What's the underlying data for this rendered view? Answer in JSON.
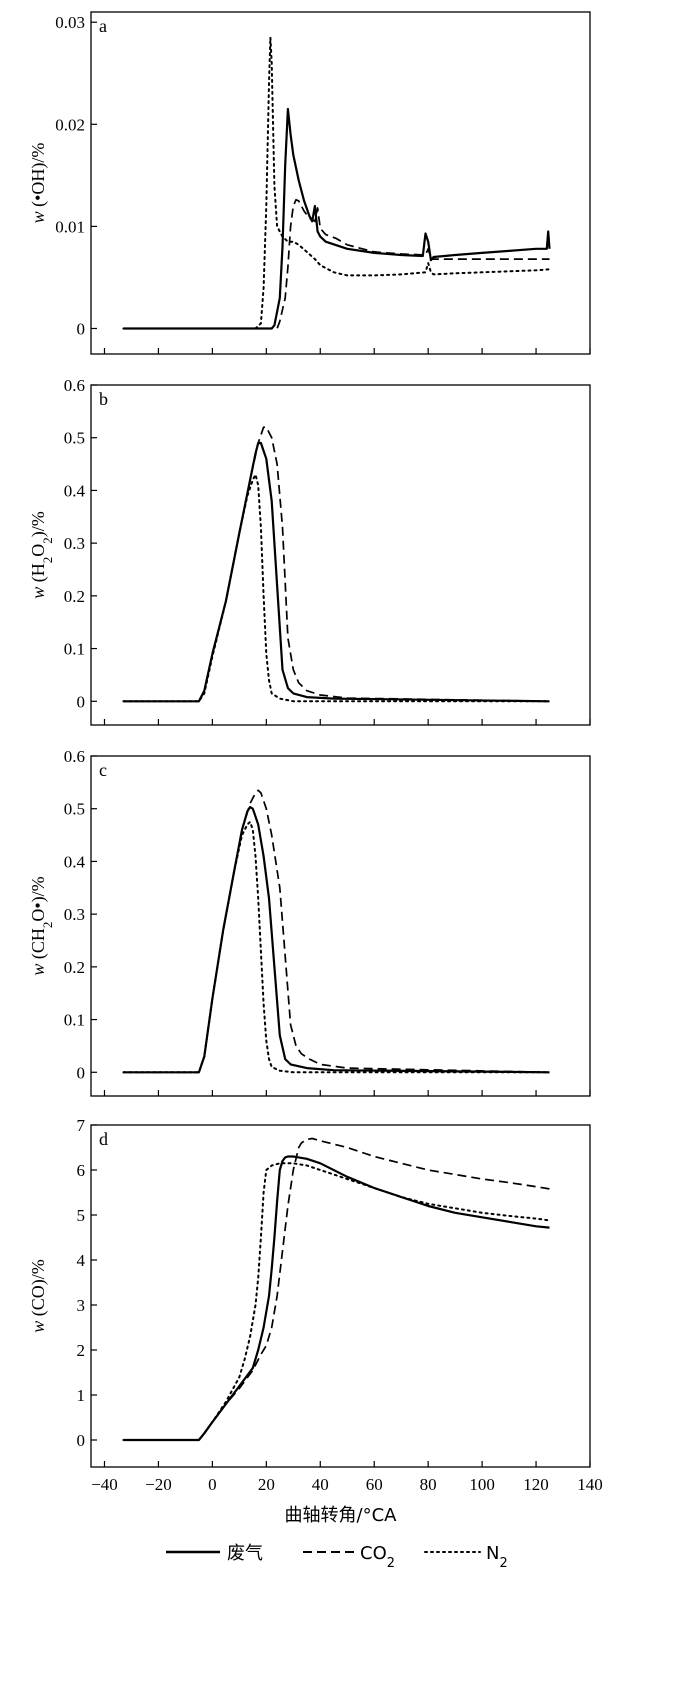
{
  "chart_data": [
    {
      "type": "line",
      "panel_label": "a",
      "ylabel": "w (•OH)/%",
      "xlim": [
        -45,
        140
      ],
      "ylim": [
        -0.0025,
        0.031
      ],
      "yticks": [
        0,
        0.01,
        0.02,
        0.03
      ],
      "ytick_labels": [
        "0",
        "0.01",
        "0.02",
        "0.03"
      ],
      "series": [
        {
          "style": "solid",
          "x": [
            -33,
            22,
            23,
            25,
            26,
            27,
            28,
            29,
            30,
            32,
            34,
            36,
            37,
            38,
            39,
            40,
            42,
            50,
            60,
            70,
            78,
            79,
            80,
            81,
            82,
            90,
            100,
            110,
            120,
            124,
            124.5,
            125
          ],
          "y": [
            0,
            0,
            0.0003,
            0.003,
            0.008,
            0.016,
            0.0215,
            0.019,
            0.017,
            0.0145,
            0.0125,
            0.011,
            0.0105,
            0.012,
            0.0095,
            0.009,
            0.0085,
            0.0078,
            0.0074,
            0.0072,
            0.0071,
            0.0093,
            0.0085,
            0.0067,
            0.007,
            0.0072,
            0.0074,
            0.0076,
            0.0078,
            0.0078,
            0.0095,
            0.0078
          ]
        },
        {
          "style": "dashed",
          "x": [
            -33,
            24,
            25,
            27,
            28,
            29,
            30,
            31,
            32,
            33,
            34,
            36,
            38,
            39,
            40,
            42,
            46,
            50,
            60,
            70,
            79,
            80,
            81,
            90,
            100,
            110,
            120,
            125
          ],
          "y": [
            0,
            0,
            0.0007,
            0.003,
            0.006,
            0.01,
            0.012,
            0.0126,
            0.0125,
            0.012,
            0.0115,
            0.0108,
            0.0105,
            0.0118,
            0.0098,
            0.0092,
            0.0088,
            0.0082,
            0.0075,
            0.0073,
            0.0072,
            0.0078,
            0.0068,
            0.0068,
            0.0068,
            0.0068,
            0.0068,
            0.0068
          ]
        },
        {
          "style": "dotted",
          "x": [
            -33,
            16,
            18,
            19,
            20,
            21,
            21.5,
            22,
            23,
            24,
            26,
            28,
            30,
            32,
            35,
            38,
            40,
            45,
            50,
            60,
            70,
            79,
            80,
            81,
            82,
            90,
            100,
            110,
            120,
            125
          ],
          "y": [
            0,
            0,
            0.0005,
            0.004,
            0.012,
            0.024,
            0.0285,
            0.026,
            0.014,
            0.01,
            0.009,
            0.0085,
            0.0085,
            0.0082,
            0.0075,
            0.0068,
            0.0062,
            0.0055,
            0.0052,
            0.0052,
            0.0053,
            0.0055,
            0.0064,
            0.0055,
            0.0053,
            0.0054,
            0.0055,
            0.0056,
            0.0057,
            0.0058
          ]
        }
      ]
    },
    {
      "type": "line",
      "panel_label": "b",
      "ylabel": "w (H2O2)/%",
      "xlim": [
        -45,
        140
      ],
      "ylim": [
        -0.045,
        0.6
      ],
      "yticks": [
        0,
        0.1,
        0.2,
        0.3,
        0.4,
        0.5,
        0.6
      ],
      "ytick_labels": [
        "0",
        "0.1",
        "0.2",
        "0.3",
        "0.4",
        "0.5",
        "0.6"
      ],
      "series": [
        {
          "style": "solid",
          "x": [
            -33,
            -5,
            -3,
            0,
            5,
            10,
            14,
            16,
            17,
            18,
            20,
            22,
            24,
            26,
            28,
            30,
            35,
            45,
            125
          ],
          "y": [
            0,
            0,
            0.02,
            0.09,
            0.19,
            0.32,
            0.42,
            0.47,
            0.49,
            0.49,
            0.46,
            0.38,
            0.22,
            0.06,
            0.025,
            0.015,
            0.008,
            0.005,
            0
          ]
        },
        {
          "style": "dashed",
          "x": [
            -33,
            -5,
            -3,
            0,
            5,
            10,
            14,
            17,
            19,
            20,
            22,
            24,
            26,
            28,
            30,
            32,
            35,
            40,
            50,
            125
          ],
          "y": [
            0,
            0,
            0.02,
            0.09,
            0.19,
            0.32,
            0.42,
            0.49,
            0.52,
            0.52,
            0.5,
            0.45,
            0.33,
            0.12,
            0.06,
            0.035,
            0.02,
            0.012,
            0.006,
            0
          ]
        },
        {
          "style": "dotted",
          "x": [
            -33,
            -5,
            -3,
            0,
            5,
            10,
            13,
            15,
            16,
            17,
            18,
            19,
            20,
            21,
            22,
            25,
            30,
            125
          ],
          "y": [
            0,
            0,
            0.015,
            0.085,
            0.19,
            0.32,
            0.39,
            0.42,
            0.43,
            0.41,
            0.33,
            0.2,
            0.09,
            0.04,
            0.015,
            0.005,
            0,
            0
          ]
        }
      ]
    },
    {
      "type": "line",
      "panel_label": "c",
      "ylabel": "w (CH2O•)/%",
      "xlim": [
        -45,
        140
      ],
      "ylim": [
        -0.045,
        0.6
      ],
      "yticks": [
        0,
        0.1,
        0.2,
        0.3,
        0.4,
        0.5,
        0.6
      ],
      "ytick_labels": [
        "0",
        "0.1",
        "0.2",
        "0.3",
        "0.4",
        "0.5",
        "0.6"
      ],
      "series": [
        {
          "style": "solid",
          "x": [
            -33,
            -5,
            -3,
            0,
            4,
            8,
            11,
            13,
            14,
            15,
            17,
            19,
            21,
            23,
            25,
            27,
            29,
            35,
            45,
            125
          ],
          "y": [
            0,
            0,
            0.03,
            0.14,
            0.27,
            0.38,
            0.46,
            0.495,
            0.503,
            0.5,
            0.47,
            0.41,
            0.33,
            0.2,
            0.07,
            0.025,
            0.015,
            0.008,
            0.004,
            0
          ]
        },
        {
          "style": "dashed",
          "x": [
            -33,
            -5,
            -3,
            0,
            4,
            8,
            11,
            14,
            16,
            17,
            18,
            20,
            22,
            25,
            27,
            29,
            31,
            33,
            36,
            40,
            50,
            125
          ],
          "y": [
            0,
            0,
            0.03,
            0.14,
            0.27,
            0.38,
            0.46,
            0.51,
            0.53,
            0.535,
            0.53,
            0.5,
            0.45,
            0.35,
            0.22,
            0.09,
            0.05,
            0.035,
            0.025,
            0.015,
            0.008,
            0
          ]
        },
        {
          "style": "dotted",
          "x": [
            -33,
            -5,
            -3,
            0,
            4,
            8,
            11,
            13,
            14,
            15,
            16,
            17,
            18,
            19,
            20,
            21,
            22,
            25,
            30,
            125
          ],
          "y": [
            0,
            0,
            0.03,
            0.14,
            0.27,
            0.38,
            0.45,
            0.47,
            0.475,
            0.46,
            0.41,
            0.33,
            0.23,
            0.13,
            0.06,
            0.025,
            0.01,
            0.003,
            0,
            0
          ]
        }
      ]
    },
    {
      "type": "line",
      "panel_label": "d",
      "ylabel": "w (CO)/%",
      "xlim": [
        -45,
        140
      ],
      "ylim": [
        -0.6,
        7
      ],
      "yticks": [
        0,
        1,
        2,
        3,
        4,
        5,
        6,
        7
      ],
      "ytick_labels": [
        "0",
        "1",
        "2",
        "3",
        "4",
        "5",
        "6",
        "7"
      ],
      "xticks": [
        -40,
        -20,
        0,
        20,
        40,
        60,
        80,
        100,
        120,
        140
      ],
      "xtick_labels": [
        "−40",
        "−20",
        "0",
        "20",
        "40",
        "60",
        "80",
        "100",
        "120",
        "140"
      ],
      "xlabel": "曲轴转角/°CA",
      "series": [
        {
          "style": "solid",
          "x": [
            -33,
            -5,
            -3,
            0,
            5,
            10,
            15,
            17,
            19,
            21,
            22,
            23,
            24,
            25,
            26,
            27,
            28,
            30,
            32,
            35,
            40,
            50,
            60,
            70,
            80,
            90,
            100,
            110,
            120,
            125
          ],
          "y": [
            0,
            0,
            0.15,
            0.4,
            0.8,
            1.2,
            1.6,
            2.0,
            2.5,
            3.2,
            3.8,
            4.5,
            5.3,
            6.0,
            6.2,
            6.28,
            6.3,
            6.3,
            6.28,
            6.25,
            6.15,
            5.85,
            5.6,
            5.4,
            5.2,
            5.05,
            4.95,
            4.85,
            4.75,
            4.72
          ]
        },
        {
          "style": "dashed",
          "x": [
            -33,
            -5,
            -3,
            0,
            5,
            10,
            15,
            18,
            20,
            22,
            24,
            26,
            28,
            30,
            32,
            33,
            35,
            37,
            40,
            50,
            60,
            70,
            80,
            90,
            100,
            110,
            120,
            125
          ],
          "y": [
            0,
            0,
            0.15,
            0.4,
            0.8,
            1.15,
            1.55,
            1.9,
            2.1,
            2.5,
            3.2,
            4.2,
            5.2,
            6.0,
            6.5,
            6.6,
            6.68,
            6.7,
            6.65,
            6.5,
            6.3,
            6.15,
            6.0,
            5.9,
            5.8,
            5.72,
            5.63,
            5.58
          ]
        },
        {
          "style": "dotted",
          "x": [
            -33,
            -5,
            -3,
            0,
            5,
            10,
            12,
            14,
            16,
            17,
            18,
            19,
            20,
            21,
            22,
            25,
            30,
            35,
            40,
            50,
            60,
            70,
            80,
            90,
            100,
            110,
            120,
            125
          ],
          "y": [
            0,
            0,
            0.15,
            0.4,
            0.85,
            1.4,
            1.8,
            2.3,
            3.0,
            3.6,
            4.5,
            5.5,
            6.0,
            6.05,
            6.1,
            6.15,
            6.15,
            6.1,
            6.0,
            5.8,
            5.6,
            5.4,
            5.25,
            5.15,
            5.05,
            4.98,
            4.92,
            4.88
          ]
        }
      ]
    }
  ],
  "legend": {
    "items": [
      {
        "style": "solid",
        "label": "废气"
      },
      {
        "style": "dashed",
        "label": "CO2"
      },
      {
        "style": "dotted",
        "label": "N2"
      }
    ]
  }
}
